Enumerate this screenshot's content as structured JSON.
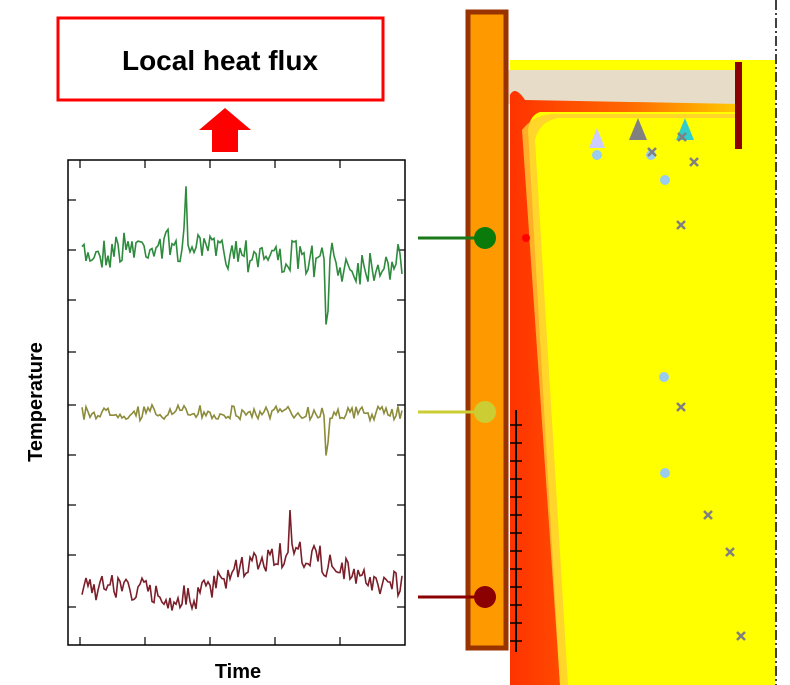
{
  "heat_flux_box": {
    "label": "Local heat flux"
  },
  "plot": {
    "y_axis_label": "Temperature",
    "x_axis_label": "Time"
  }
}
